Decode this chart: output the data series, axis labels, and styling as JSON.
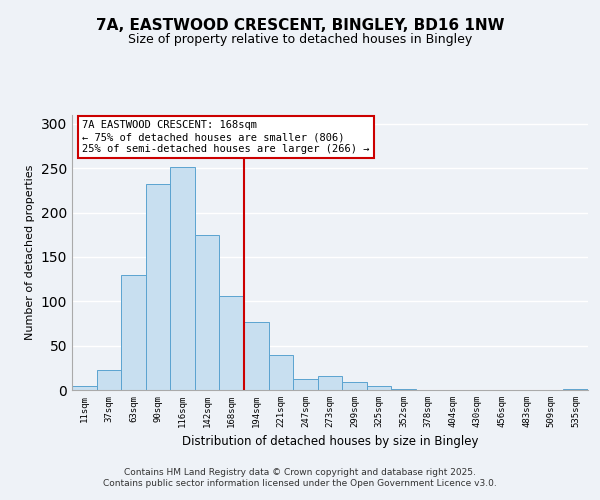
{
  "title": "7A, EASTWOOD CRESCENT, BINGLEY, BD16 1NW",
  "subtitle": "Size of property relative to detached houses in Bingley",
  "xlabel": "Distribution of detached houses by size in Bingley",
  "ylabel": "Number of detached properties",
  "bar_labels": [
    "11sqm",
    "37sqm",
    "63sqm",
    "90sqm",
    "116sqm",
    "142sqm",
    "168sqm",
    "194sqm",
    "221sqm",
    "247sqm",
    "273sqm",
    "299sqm",
    "325sqm",
    "352sqm",
    "378sqm",
    "404sqm",
    "430sqm",
    "456sqm",
    "483sqm",
    "509sqm",
    "535sqm"
  ],
  "bar_heights": [
    5,
    22,
    130,
    232,
    251,
    175,
    106,
    77,
    40,
    12,
    16,
    9,
    4,
    1,
    0,
    0,
    0,
    0,
    0,
    0,
    1
  ],
  "bar_color": "#c8dff0",
  "bar_edge_color": "#5ba3d0",
  "vline_x_index": 6,
  "vline_color": "#cc0000",
  "annotation_text": "7A EASTWOOD CRESCENT: 168sqm\n← 75% of detached houses are smaller (806)\n25% of semi-detached houses are larger (266) →",
  "annotation_box_color": "#ffffff",
  "annotation_box_edge": "#cc0000",
  "ylim": [
    0,
    310
  ],
  "yticks": [
    0,
    50,
    100,
    150,
    200,
    250,
    300
  ],
  "background_color": "#eef2f7",
  "plot_background": "#eef2f7",
  "footer_line1": "Contains HM Land Registry data © Crown copyright and database right 2025.",
  "footer_line2": "Contains public sector information licensed under the Open Government Licence v3.0.",
  "title_fontsize": 11,
  "subtitle_fontsize": 9,
  "annot_fontsize": 7.5,
  "ylabel_fontsize": 8,
  "xlabel_fontsize": 8.5,
  "tick_fontsize": 6.5
}
